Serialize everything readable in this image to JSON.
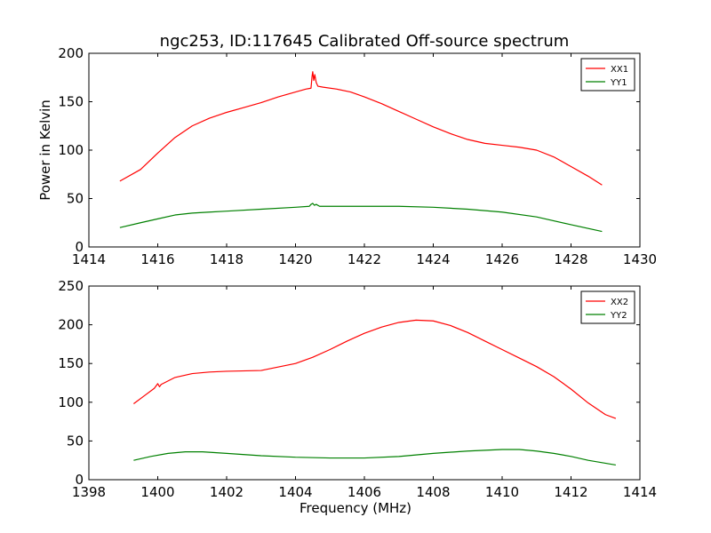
{
  "title": "ngc253, ID:117645 Calibrated Off-source spectrum",
  "chart_data": [
    {
      "type": "line",
      "ylabel": "Power in Kelvin",
      "xlabel": "",
      "xlim": [
        1414,
        1430
      ],
      "ylim": [
        0,
        200
      ],
      "xticks": [
        "1414",
        "1416",
        "1418",
        "1420",
        "1422",
        "1424",
        "1426",
        "1428",
        "1430"
      ],
      "yticks": [
        "0",
        "50",
        "100",
        "150",
        "200"
      ],
      "legend_position": "top-right",
      "series": [
        {
          "name": "XX1",
          "color": "#ff0000",
          "points": [
            [
              1414.9,
              68
            ],
            [
              1415.5,
              80
            ],
            [
              1416.0,
              97
            ],
            [
              1416.5,
              113
            ],
            [
              1417.0,
              125
            ],
            [
              1417.5,
              133
            ],
            [
              1418.0,
              139
            ],
            [
              1418.5,
              144
            ],
            [
              1419.0,
              149
            ],
            [
              1419.5,
              155
            ],
            [
              1420.0,
              160
            ],
            [
              1420.3,
              163
            ],
            [
              1420.45,
              164
            ],
            [
              1420.48,
              176
            ],
            [
              1420.5,
              181
            ],
            [
              1420.53,
              172
            ],
            [
              1420.56,
              178
            ],
            [
              1420.6,
              170
            ],
            [
              1420.65,
              166
            ],
            [
              1420.8,
              165
            ],
            [
              1421.2,
              163
            ],
            [
              1421.6,
              160
            ],
            [
              1422.0,
              155
            ],
            [
              1422.5,
              148
            ],
            [
              1423.0,
              140
            ],
            [
              1423.5,
              132
            ],
            [
              1424.0,
              124
            ],
            [
              1424.5,
              117
            ],
            [
              1425.0,
              111
            ],
            [
              1425.5,
              107
            ],
            [
              1426.0,
              105
            ],
            [
              1426.5,
              103
            ],
            [
              1427.0,
              100
            ],
            [
              1427.5,
              93
            ],
            [
              1428.0,
              83
            ],
            [
              1428.5,
              73
            ],
            [
              1428.9,
              64
            ]
          ]
        },
        {
          "name": "YY1",
          "color": "#008000",
          "points": [
            [
              1414.9,
              20
            ],
            [
              1415.5,
              25
            ],
            [
              1416.0,
              29
            ],
            [
              1416.5,
              33
            ],
            [
              1417.0,
              35
            ],
            [
              1417.5,
              36
            ],
            [
              1418.0,
              37
            ],
            [
              1419.0,
              39
            ],
            [
              1420.0,
              41
            ],
            [
              1420.4,
              42
            ],
            [
              1420.45,
              44
            ],
            [
              1420.5,
              45
            ],
            [
              1420.55,
              43
            ],
            [
              1420.6,
              44
            ],
            [
              1420.7,
              42
            ],
            [
              1421.0,
              42
            ],
            [
              1422.0,
              42
            ],
            [
              1423.0,
              42
            ],
            [
              1424.0,
              41
            ],
            [
              1425.0,
              39
            ],
            [
              1426.0,
              36
            ],
            [
              1427.0,
              31
            ],
            [
              1428.0,
              23
            ],
            [
              1428.9,
              16
            ]
          ]
        }
      ]
    },
    {
      "type": "line",
      "ylabel": "",
      "xlabel": "Frequency (MHz)",
      "xlim": [
        1398,
        1414
      ],
      "ylim": [
        0,
        250
      ],
      "xticks": [
        "1398",
        "1400",
        "1402",
        "1404",
        "1406",
        "1408",
        "1410",
        "1412",
        "1414"
      ],
      "yticks": [
        "0",
        "50",
        "100",
        "150",
        "200",
        "250"
      ],
      "legend_position": "top-right",
      "series": [
        {
          "name": "XX2",
          "color": "#ff0000",
          "points": [
            [
              1399.3,
              98
            ],
            [
              1399.6,
              108
            ],
            [
              1399.9,
              118
            ],
            [
              1400.0,
              124
            ],
            [
              1400.05,
              120
            ],
            [
              1400.1,
              123
            ],
            [
              1400.5,
              132
            ],
            [
              1401.0,
              137
            ],
            [
              1401.5,
              139
            ],
            [
              1402.0,
              140
            ],
            [
              1403.0,
              141
            ],
            [
              1404.0,
              150
            ],
            [
              1404.5,
              158
            ],
            [
              1405.0,
              168
            ],
            [
              1405.5,
              179
            ],
            [
              1406.0,
              189
            ],
            [
              1406.5,
              197
            ],
            [
              1407.0,
              203
            ],
            [
              1407.5,
              206
            ],
            [
              1408.0,
              205
            ],
            [
              1408.5,
              199
            ],
            [
              1409.0,
              190
            ],
            [
              1409.5,
              179
            ],
            [
              1410.0,
              168
            ],
            [
              1410.5,
              157
            ],
            [
              1411.0,
              146
            ],
            [
              1411.5,
              133
            ],
            [
              1412.0,
              117
            ],
            [
              1412.5,
              99
            ],
            [
              1413.0,
              84
            ],
            [
              1413.3,
              79
            ]
          ]
        },
        {
          "name": "YY2",
          "color": "#008000",
          "points": [
            [
              1399.3,
              25
            ],
            [
              1399.8,
              30
            ],
            [
              1400.3,
              34
            ],
            [
              1400.8,
              36
            ],
            [
              1401.3,
              36
            ],
            [
              1402.0,
              34
            ],
            [
              1403.0,
              31
            ],
            [
              1404.0,
              29
            ],
            [
              1405.0,
              28
            ],
            [
              1406.0,
              28
            ],
            [
              1407.0,
              30
            ],
            [
              1408.0,
              34
            ],
            [
              1409.0,
              37
            ],
            [
              1410.0,
              39
            ],
            [
              1410.5,
              39
            ],
            [
              1411.0,
              37
            ],
            [
              1411.5,
              34
            ],
            [
              1412.0,
              30
            ],
            [
              1412.5,
              25
            ],
            [
              1413.3,
              19
            ]
          ]
        }
      ]
    }
  ]
}
